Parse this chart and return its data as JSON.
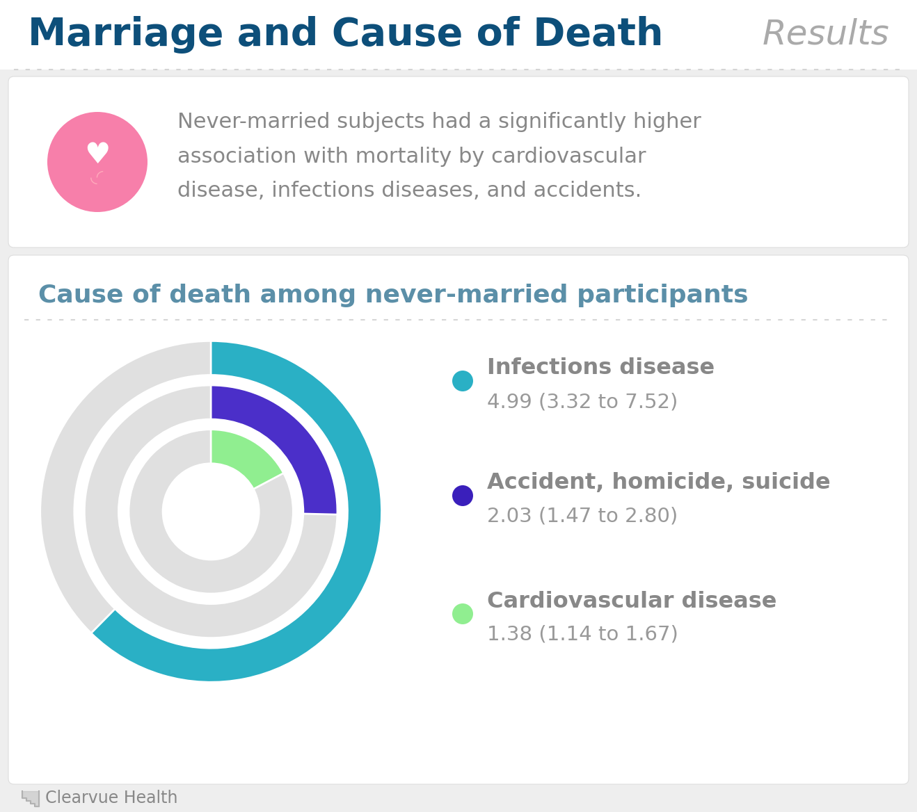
{
  "title": "Marriage and Cause of Death",
  "subtitle": "Results",
  "section_title": "Cause of death among never-married participants",
  "summary_text": "Never-married subjects had a significantly higher\nassociation with mortality by cardiovascular\ndisease, infections diseases, and accidents.",
  "background_color": "#eeeeee",
  "card_color": "#ffffff",
  "title_color": "#0d4f7a",
  "subtitle_color": "#aaaaaa",
  "section_title_color": "#5b8fa8",
  "summary_text_color": "#888888",
  "dotted_line_color": "#cccccc",
  "categories": [
    "Infections disease",
    "Accident, homicide, suicide",
    "Cardiovascular disease"
  ],
  "values": [
    "4.99 (3.32 to 7.52)",
    "2.03 (1.47 to 2.80)",
    "1.38 (1.14 to 1.67)"
  ],
  "donut_colors": [
    "#2ab0c5",
    "#4b2fc9",
    "#90ee90"
  ],
  "donut_bg_color": "#e0e0e0",
  "legend_dot_colors": [
    "#2ab0c5",
    "#3a1fbb",
    "#90ee90"
  ],
  "legend_label_color": "#888888",
  "legend_value_color": "#999999",
  "footer_text": "Clearvue Health",
  "footer_color": "#888888",
  "ring_values": [
    4.99,
    2.03,
    1.38
  ],
  "ring_max": 8.0,
  "icon_color": "#f77faa"
}
